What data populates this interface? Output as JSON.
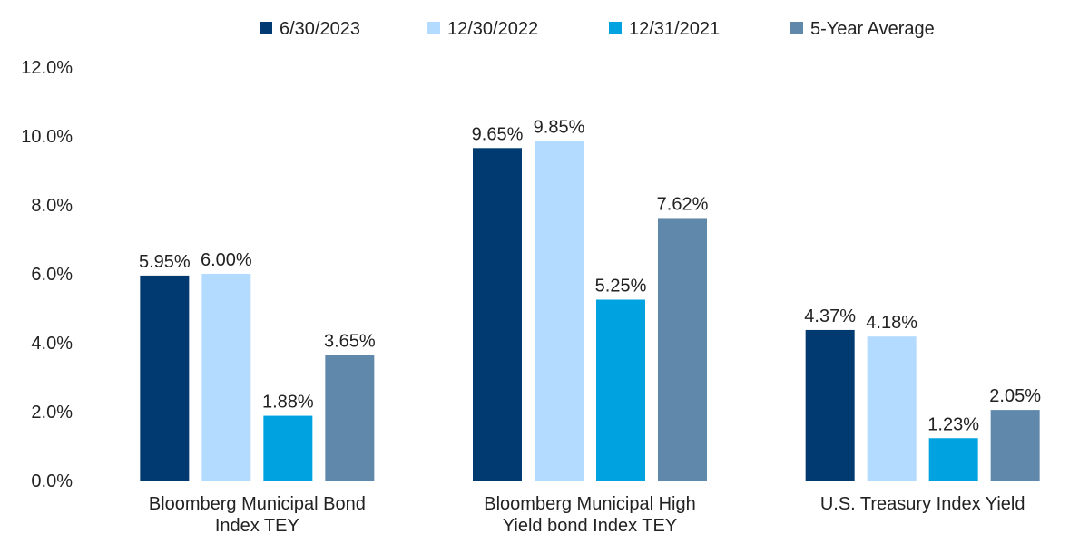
{
  "chart_data": {
    "type": "bar",
    "title": "",
    "xlabel": "",
    "ylabel": "",
    "ylim": [
      0,
      12
    ],
    "y_ticks": [
      "0.0%",
      "2.0%",
      "4.0%",
      "6.0%",
      "8.0%",
      "10.0%",
      "12.0%"
    ],
    "y_tick_values": [
      0,
      2,
      4,
      6,
      8,
      10,
      12
    ],
    "grid": false,
    "legend_position": "top",
    "categories": [
      [
        "Bloomberg Municipal Bond",
        "Index TEY"
      ],
      [
        "Bloomberg Municipal High",
        "Yield bond Index TEY"
      ],
      [
        "U.S. Treasury Index Yield"
      ]
    ],
    "series": [
      {
        "name": "6/30/2023",
        "color": "#003A70",
        "values": [
          5.95,
          9.65,
          4.37
        ],
        "labels": [
          "5.95%",
          "9.65%",
          "4.37%"
        ]
      },
      {
        "name": "12/30/2022",
        "color": "#B3DBFF",
        "values": [
          6.0,
          9.85,
          4.18
        ],
        "labels": [
          "6.00%",
          "9.85%",
          "4.18%"
        ]
      },
      {
        "name": "12/31/2021",
        "color": "#00A3E0",
        "values": [
          1.88,
          5.25,
          1.23
        ],
        "labels": [
          "1.88%",
          "5.25%",
          "1.23%"
        ]
      },
      {
        "name": "5-Year Average",
        "color": "#6088AB",
        "values": [
          3.65,
          7.62,
          2.05
        ],
        "labels": [
          "3.65%",
          "7.62%",
          "2.05%"
        ]
      }
    ]
  }
}
